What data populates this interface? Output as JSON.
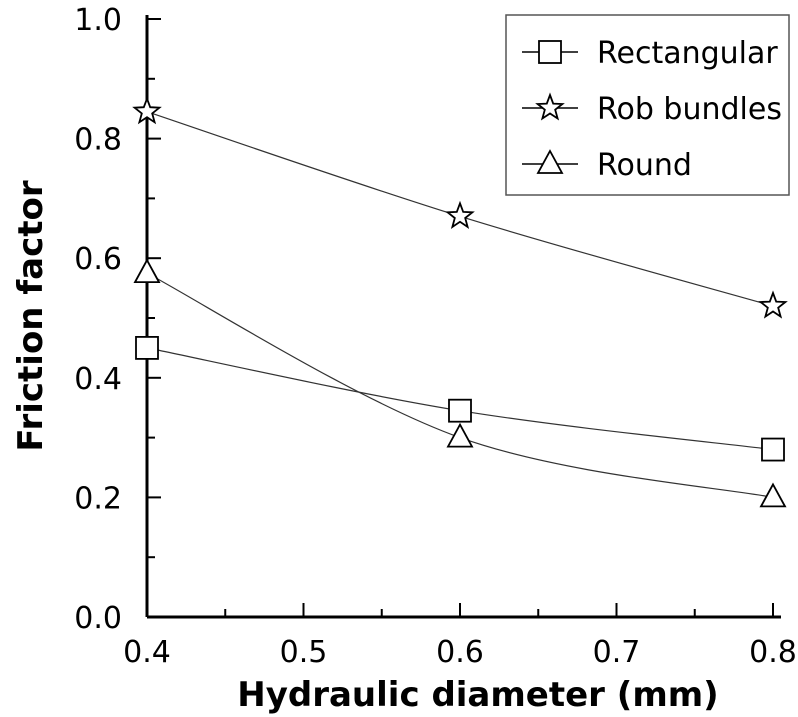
{
  "chart_data": {
    "type": "line",
    "xlabel": "Hydraulic diameter  (mm)",
    "ylabel": "Friction factor",
    "xlim": [
      0.4,
      0.8
    ],
    "ylim": [
      0.0,
      1.0
    ],
    "xticks": [
      "0.4",
      "0.5",
      "0.6",
      "0.7",
      "0.8"
    ],
    "yticks": [
      "0.0",
      "0.2",
      "0.4",
      "0.6",
      "0.8",
      "1.0"
    ],
    "x": [
      0.4,
      0.6,
      0.8
    ],
    "grid": false,
    "legend_position": "top-right",
    "series": [
      {
        "name": "Rectangular",
        "marker": "square",
        "values": [
          0.45,
          0.345,
          0.28
        ]
      },
      {
        "name": "Rob bundles",
        "marker": "star",
        "values": [
          0.845,
          0.67,
          0.52
        ]
      },
      {
        "name": "Round",
        "marker": "triangle",
        "values": [
          0.575,
          0.3,
          0.2
        ]
      }
    ]
  }
}
